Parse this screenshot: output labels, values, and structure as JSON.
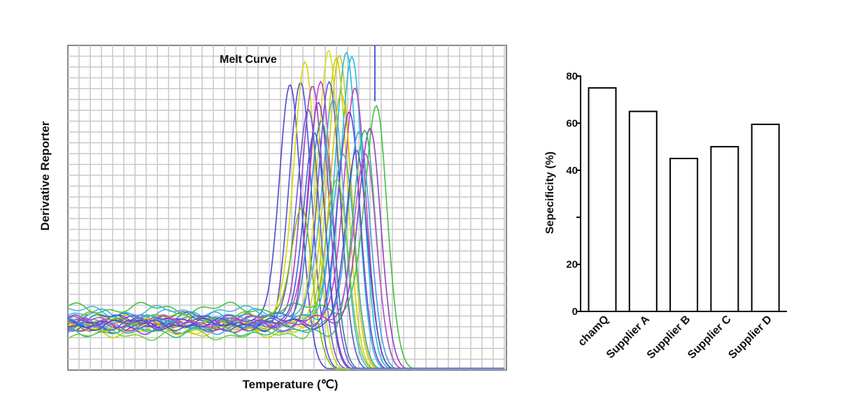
{
  "chart_data": [
    {
      "type": "line",
      "title": "Melt Curve",
      "xlabel": "Temperature (℃)",
      "ylabel": "Derivative  Reporter",
      "xlim": [
        0,
        100
      ],
      "ylim": [
        0,
        100
      ],
      "grid": true,
      "series": [
        {
          "color": "#4a4ad0",
          "peak": 50.8,
          "height": 90,
          "baseline": 14
        },
        {
          "color": "#5050d8",
          "peak": 53.2,
          "height": 90,
          "baseline": 13
        },
        {
          "color": "#d8d800",
          "peak": 54.2,
          "height": 97,
          "baseline": 15
        },
        {
          "color": "#a040c8",
          "peak": 56.0,
          "height": 90,
          "baseline": 16
        },
        {
          "color": "#dcdc10",
          "peak": 59.6,
          "height": 99,
          "baseline": 13
        },
        {
          "color": "#c840c8",
          "peak": 57.8,
          "height": 91,
          "baseline": 15
        },
        {
          "color": "#c8c820",
          "peak": 62.0,
          "height": 99,
          "baseline": 14
        },
        {
          "color": "#30b8e0",
          "peak": 63.7,
          "height": 99,
          "baseline": 17
        },
        {
          "color": "#d0d000",
          "peak": 61.3,
          "height": 98,
          "baseline": 12
        },
        {
          "color": "#20c0e0",
          "peak": 64.9,
          "height": 99,
          "baseline": 16
        },
        {
          "color": "#5858d8",
          "peak": 59.7,
          "height": 90,
          "baseline": 14
        },
        {
          "color": "#c040c0",
          "peak": 65.6,
          "height": 89,
          "baseline": 14
        },
        {
          "color": "#40c040",
          "peak": 70.5,
          "height": 83,
          "baseline": 19
        },
        {
          "color": "#6060d0",
          "peak": 55.0,
          "height": 83,
          "baseline": 15
        },
        {
          "color": "#9040d0",
          "peak": 57.3,
          "height": 84,
          "baseline": 13
        },
        {
          "color": "#50b0e0",
          "peak": 60.7,
          "height": 85,
          "baseline": 18
        },
        {
          "color": "#d8c000",
          "peak": 62.5,
          "height": 88,
          "baseline": 14
        },
        {
          "color": "#7040d0",
          "peak": 64.3,
          "height": 81,
          "baseline": 15
        },
        {
          "color": "#40a0e0",
          "peak": 66.6,
          "height": 75,
          "baseline": 13
        },
        {
          "color": "#9040c0",
          "peak": 69.0,
          "height": 77,
          "baseline": 15
        },
        {
          "color": "#30c070",
          "peak": 67.8,
          "height": 75,
          "baseline": 12
        },
        {
          "color": "#3090b0",
          "peak": 58.0,
          "height": 80,
          "baseline": 16
        },
        {
          "color": "#80c000",
          "peak": 53.5,
          "height": 52,
          "baseline": 16
        },
        {
          "color": "#40b0c0",
          "peak": 63.0,
          "height": 70,
          "baseline": 15
        },
        {
          "color": "#5050c0",
          "peak": 66.0,
          "height": 68,
          "baseline": 14
        },
        {
          "color": "#70d040",
          "peak": 61.5,
          "height": 60,
          "baseline": 11
        },
        {
          "color": "#c050d0",
          "peak": 68.0,
          "height": 70,
          "baseline": 15
        },
        {
          "color": "#4060d0",
          "peak": 56.5,
          "height": 74,
          "baseline": 14
        }
      ],
      "marker_line": {
        "x": 70.0,
        "color": "#4060e0"
      }
    },
    {
      "type": "bar",
      "title": "",
      "xlabel": "",
      "ylabel": "Sepecificity (%)",
      "categories": [
        "chamQ",
        "Supplier A",
        "Supplier B",
        "Supplier C",
        "Supplier D"
      ],
      "values": [
        75,
        65,
        45,
        50,
        59.5
      ],
      "ylim": [
        0,
        80
      ],
      "ticks": [
        {
          "value": 0,
          "label": "0"
        },
        {
          "value": 20,
          "label": "20"
        },
        {
          "value": 30,
          "label": ""
        },
        {
          "value": 40,
          "label": "40"
        },
        {
          "value": 60,
          "label": "60"
        },
        {
          "value": 80,
          "label": "80"
        }
      ]
    }
  ]
}
